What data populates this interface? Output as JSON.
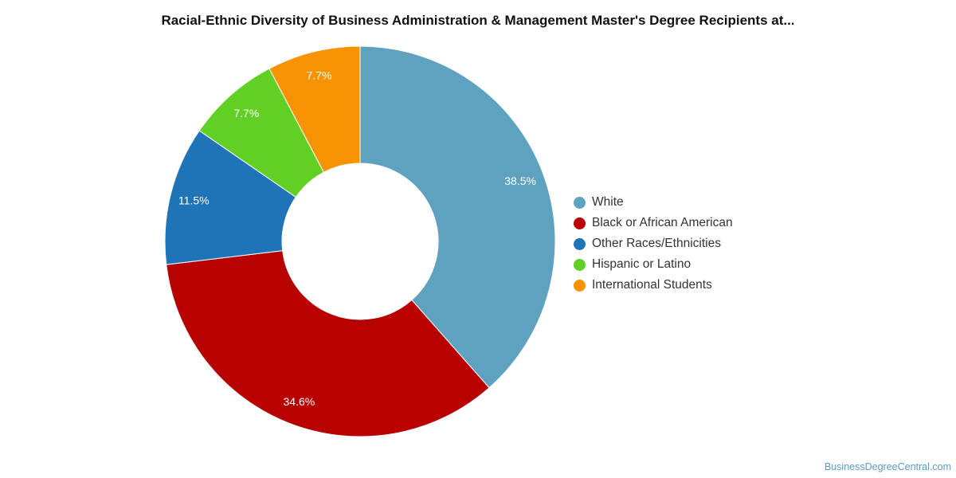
{
  "chart_data": {
    "type": "pie",
    "donut": true,
    "title": "Racial-Ethnic Diversity of Business Administration & Management Master's Degree Recipients at...",
    "legend_position": "right",
    "slices": [
      {
        "name": "White",
        "value": 38.5,
        "label": "38.5%",
        "color": "#5fa2c0"
      },
      {
        "name": "Black or African American",
        "value": 34.6,
        "label": "34.6%",
        "color": "#b80000"
      },
      {
        "name": "Other Races/Ethnicities",
        "value": 11.5,
        "label": "11.5%",
        "color": "#1f74b8"
      },
      {
        "name": "Hispanic or Latino",
        "value": 7.7,
        "label": "7.7%",
        "color": "#62cf24"
      },
      {
        "name": "International Students",
        "value": 7.7,
        "label": "7.7%",
        "color": "#f79200"
      }
    ]
  },
  "footer": {
    "source": "BusinessDegreeCentral.com"
  }
}
